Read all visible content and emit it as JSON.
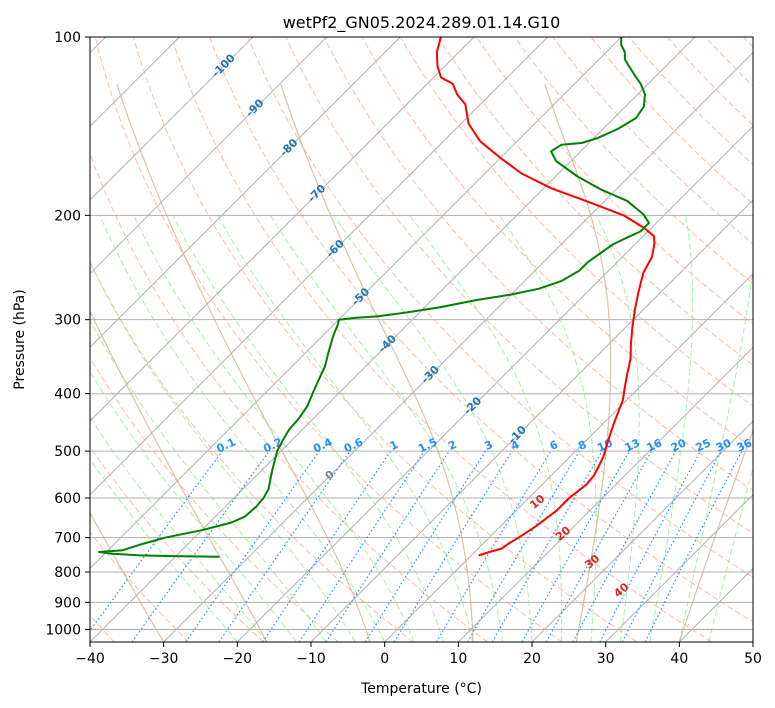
{
  "chart_data": {
    "type": "line",
    "subtype": "skew-T log-P diagram",
    "title": "wetPf2_GN05.2024.289.01.14.G10",
    "xlabel": "Temperature (°C)",
    "ylabel": "Pressure (hPa)",
    "xlim": [
      -40,
      50
    ],
    "ylim": [
      1050,
      100
    ],
    "yscale": "log",
    "grid": true,
    "x_ticks": [
      -40,
      -30,
      -20,
      -10,
      0,
      10,
      20,
      30,
      40,
      50
    ],
    "x_tick_labels": [
      "−40",
      "−30",
      "−20",
      "−10",
      "0",
      "10",
      "20",
      "30",
      "40",
      "50"
    ],
    "y_ticks": [
      100,
      200,
      300,
      400,
      500,
      600,
      700,
      800,
      900,
      1000
    ],
    "y_tick_labels": [
      "100",
      "200",
      "300",
      "400",
      "500",
      "600",
      "700",
      "800",
      "900",
      "1000"
    ],
    "isotherm_labels": [
      "-100",
      "-90",
      "-80",
      "-70",
      "-60",
      "-50",
      "-40",
      "-30",
      "-20",
      "-10"
    ],
    "isotherm_label_values": [
      -100,
      -90,
      -80,
      -70,
      -60,
      -50,
      -40,
      -30,
      -20,
      -10
    ],
    "mixing_ratio_labels": [
      "0.1",
      "0.2",
      "0.4",
      "0.6",
      "1",
      "1.5",
      "2",
      "3",
      "4",
      "6",
      "8",
      "10",
      "13",
      "16",
      "20",
      "25",
      "30",
      "36"
    ],
    "mixing_ratio_values": [
      0.1,
      0.2,
      0.4,
      0.6,
      1,
      1.5,
      2,
      3,
      4,
      6,
      8,
      10,
      13,
      16,
      20,
      25,
      30,
      36
    ],
    "theta_e_labels": [
      "0",
      "10",
      "20",
      "30",
      "40"
    ],
    "theta_e_label_temps": [
      0,
      10,
      20,
      30,
      40
    ],
    "theta_e_label_pressures": [
      550,
      610,
      690,
      770,
      860
    ],
    "series": [
      {
        "role": "temperature",
        "color": "#ff0000",
        "points": [
          [
            1,
            750
          ],
          [
            2,
            740
          ],
          [
            3.2,
            730
          ],
          [
            3.5,
            715
          ],
          [
            4,
            700
          ],
          [
            4.8,
            670
          ],
          [
            5.5,
            630
          ],
          [
            5.5,
            600
          ],
          [
            6,
            570
          ],
          [
            5.8,
            550
          ],
          [
            5.2,
            530
          ],
          [
            4.5,
            510
          ],
          [
            3.5,
            490
          ],
          [
            2.5,
            470
          ],
          [
            1.5,
            450
          ],
          [
            0.5,
            430
          ],
          [
            -0.5,
            410
          ],
          [
            -2,
            390
          ],
          [
            -3.5,
            370
          ],
          [
            -5,
            350
          ],
          [
            -7,
            330
          ],
          [
            -9,
            310
          ],
          [
            -11,
            290
          ],
          [
            -13,
            270
          ],
          [
            -15,
            250
          ],
          [
            -16,
            235
          ],
          [
            -17.5,
            223
          ],
          [
            -18.5,
            217
          ],
          [
            -21,
            210
          ],
          [
            -25.5,
            200
          ],
          [
            -32,
            190
          ],
          [
            -39,
            180
          ],
          [
            -45,
            170
          ],
          [
            -50,
            160
          ],
          [
            -55,
            150
          ],
          [
            -59,
            140
          ],
          [
            -62,
            130
          ],
          [
            -64.5,
            125
          ],
          [
            -66.5,
            120
          ],
          [
            -69,
            117
          ],
          [
            -71,
            112
          ],
          [
            -73,
            106
          ],
          [
            -74.5,
            100
          ]
        ]
      },
      {
        "role": "dewpoint",
        "color": "#008000",
        "points": [
          [
            -34,
            754
          ],
          [
            -40.5,
            752
          ],
          [
            -45,
            750
          ],
          [
            -49,
            745
          ],
          [
            -51,
            740
          ],
          [
            -48,
            735
          ],
          [
            -46.5,
            720
          ],
          [
            -44,
            700
          ],
          [
            -40,
            680
          ],
          [
            -37,
            660
          ],
          [
            -36,
            645
          ],
          [
            -35.8,
            620
          ],
          [
            -36,
            600
          ],
          [
            -36.5,
            580
          ],
          [
            -37.5,
            560
          ],
          [
            -38.5,
            540
          ],
          [
            -39.5,
            520
          ],
          [
            -40.5,
            500
          ],
          [
            -41.2,
            480
          ],
          [
            -41.8,
            460
          ],
          [
            -42,
            440
          ],
          [
            -42.5,
            420
          ],
          [
            -43.5,
            400
          ],
          [
            -44.5,
            380
          ],
          [
            -45.5,
            360
          ],
          [
            -47,
            340
          ],
          [
            -48.5,
            320
          ],
          [
            -49.5,
            305
          ],
          [
            -50,
            300
          ],
          [
            -48,
            298
          ],
          [
            -45,
            296
          ],
          [
            -42,
            292
          ],
          [
            -38,
            286
          ],
          [
            -34,
            278
          ],
          [
            -30,
            272
          ],
          [
            -27,
            266
          ],
          [
            -25,
            258
          ],
          [
            -24,
            248
          ],
          [
            -24,
            240
          ],
          [
            -23.5,
            232
          ],
          [
            -23,
            224
          ],
          [
            -22,
            218
          ],
          [
            -21,
            213
          ],
          [
            -21,
            206
          ],
          [
            -23,
            199
          ],
          [
            -27,
            189
          ],
          [
            -32,
            181
          ],
          [
            -37,
            172
          ],
          [
            -42,
            162
          ],
          [
            -44,
            156
          ],
          [
            -43.5,
            152
          ],
          [
            -41,
            151
          ],
          [
            -39.5,
            148
          ],
          [
            -38,
            143
          ],
          [
            -37,
            137
          ],
          [
            -37.5,
            131
          ],
          [
            -39,
            125
          ],
          [
            -41,
            120
          ],
          [
            -43,
            116
          ],
          [
            -45,
            112
          ],
          [
            -46.5,
            109
          ],
          [
            -47.5,
            106
          ],
          [
            -49,
            103
          ],
          [
            -50,
            100
          ]
        ]
      }
    ]
  },
  "colors": {
    "temperature": "#ff0000",
    "dewpoint": "#008000",
    "isotherm_label": "#1f77b4",
    "mixing_ratio": "#1e90ff",
    "theta_e_label": "#d62728",
    "grid": "#b0b0b0",
    "dry_adiabat": "#ffa07a",
    "moist_adiabat": "#90ee90",
    "theta_e_line": "#d2b48c"
  }
}
